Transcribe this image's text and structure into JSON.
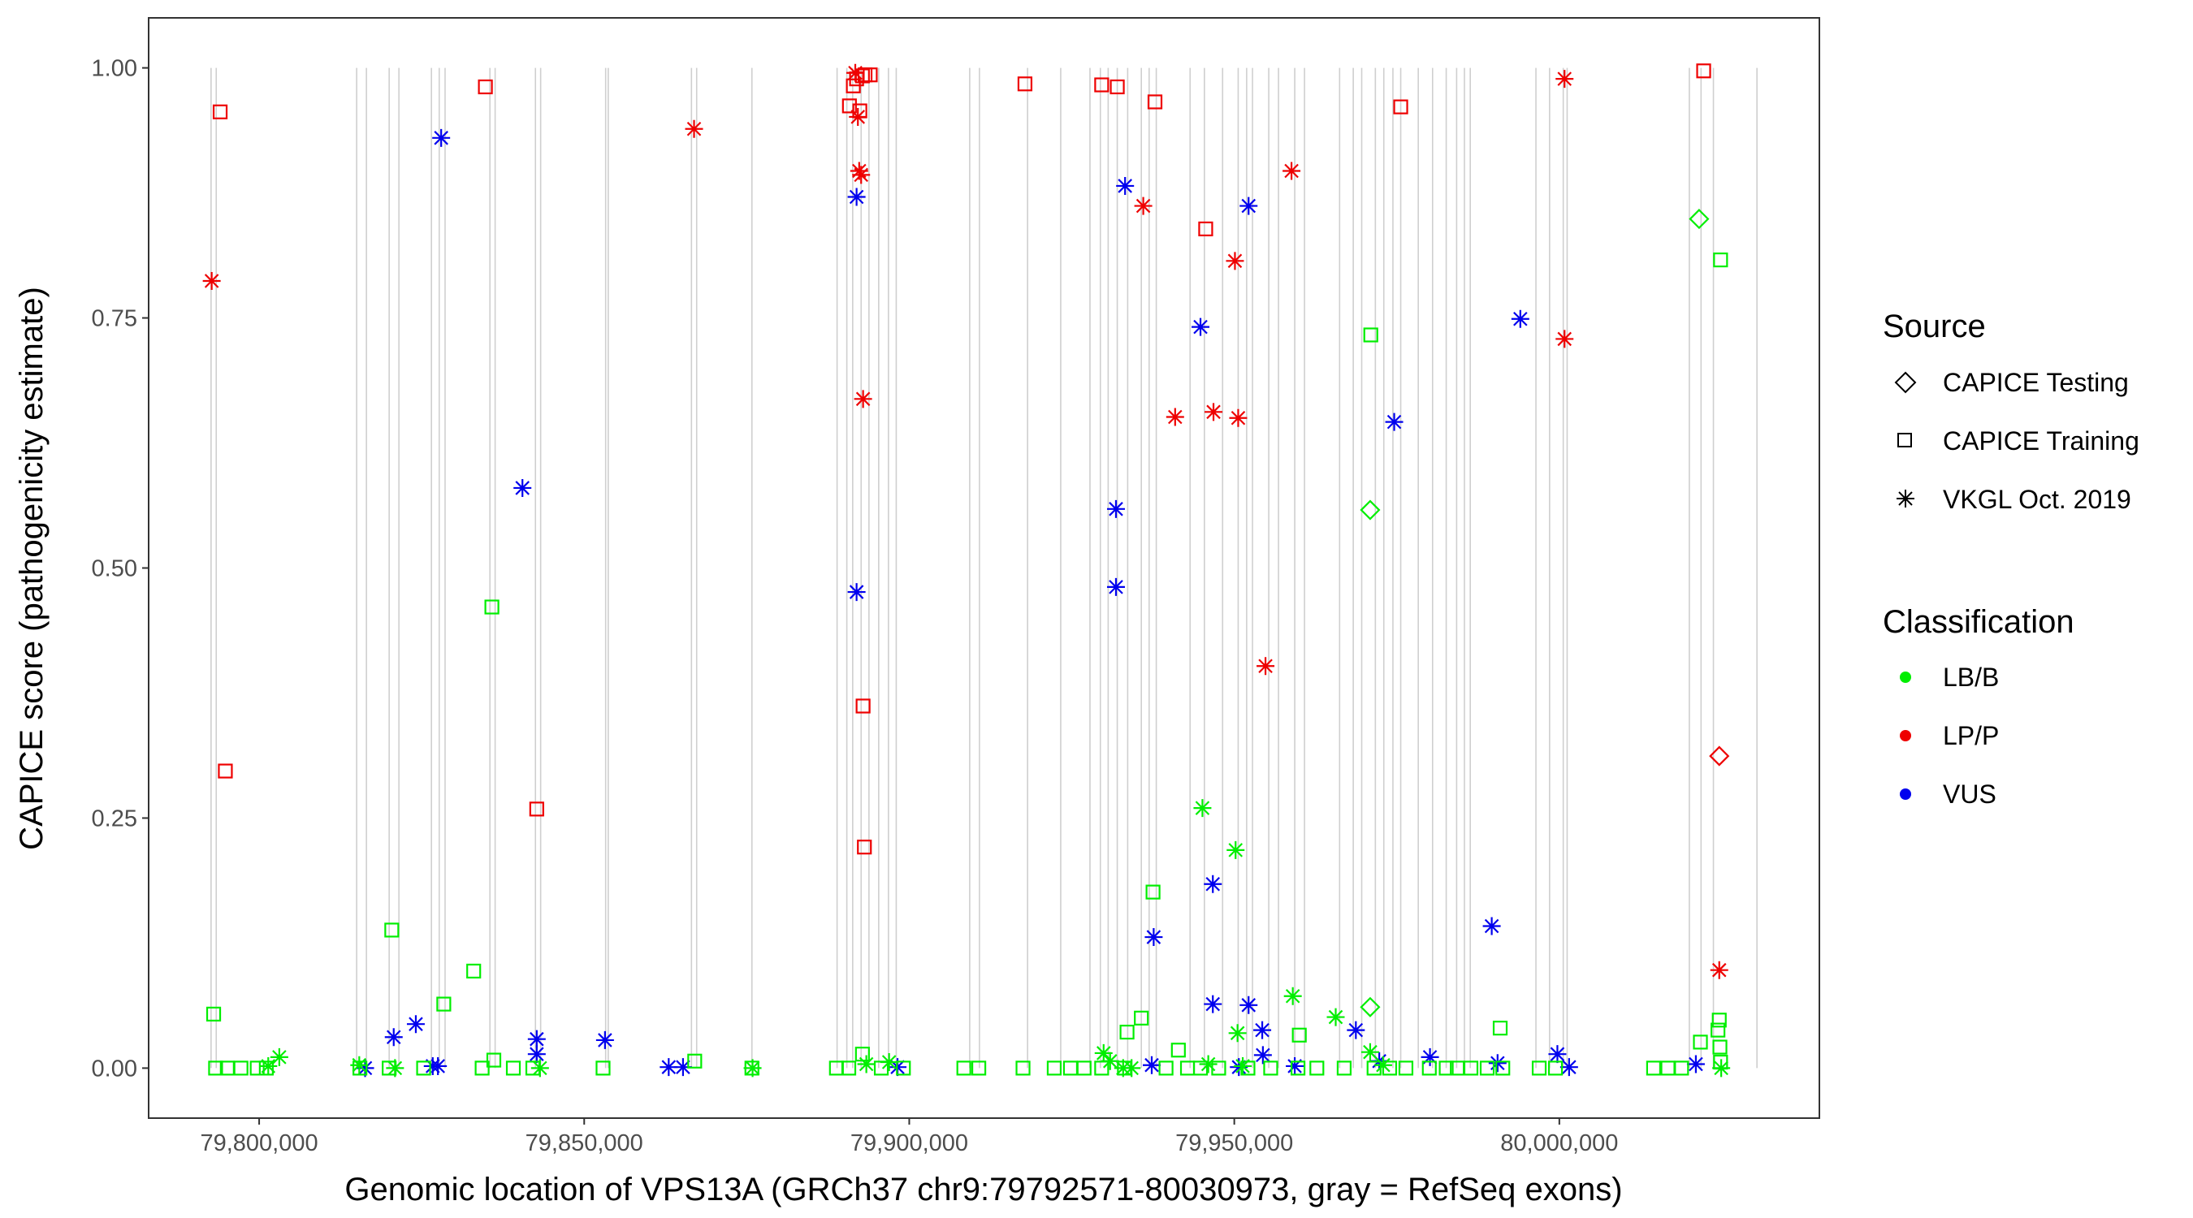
{
  "chart_data": {
    "type": "scatter",
    "xlabel": "Genomic location of VPS13A (GRCh37 chr9:79792571-80030973, gray = RefSeq exons)",
    "ylabel": "CAPICE score (pathogenicity estimate)",
    "xlim": [
      79783000,
      80040000
    ],
    "ylim": [
      -0.05,
      1.05
    ],
    "xticks": [
      79800000,
      79850000,
      79900000,
      79950000,
      80000000
    ],
    "xtick_labels": [
      "79,800,000",
      "79,850,000",
      "79,900,000",
      "79,950,000",
      "80,000,000"
    ],
    "yticks": [
      0,
      0.25,
      0.5,
      0.75,
      1.0
    ],
    "ytick_labels": [
      "0.00",
      "0.25",
      "0.50",
      "0.75",
      "1.00"
    ],
    "exon_positions": [
      79792600,
      79793400,
      79815000,
      79816500,
      79820000,
      79821500,
      79826500,
      79827700,
      79828600,
      79835500,
      79836300,
      79842500,
      79843300,
      79853300,
      79853700,
      79866500,
      79867300,
      79875800,
      79888900,
      79890400,
      79891300,
      79892600,
      79893800,
      79895300,
      79896800,
      79898000,
      79909300,
      79910800,
      79918200,
      79923300,
      79927800,
      79929400,
      79930600,
      79932000,
      79933600,
      79935700,
      79936900,
      79938000,
      79943200,
      79945400,
      79948200,
      79950600,
      79951900,
      79952800,
      79955300,
      79956800,
      79959300,
      79960800,
      79966200,
      79968300,
      79969600,
      79971700,
      79973000,
      79974400,
      79975600,
      79978300,
      79980500,
      79982600,
      79984200,
      79985400,
      79986300,
      79996400,
      79998500,
      80000600,
      80001200,
      80020000,
      80021800,
      80023700,
      80030400
    ],
    "legend": {
      "source_title": "Source",
      "source_entries": [
        {
          "label": "CAPICE Testing",
          "shape": "diamond"
        },
        {
          "label": "CAPICE Training",
          "shape": "square"
        },
        {
          "label": "VKGL Oct. 2019",
          "shape": "asterisk"
        }
      ],
      "class_title": "Classification",
      "class_entries": [
        {
          "label": "LB/B",
          "color": "#00ee00"
        },
        {
          "label": "LP/P",
          "color": "#ee0000"
        },
        {
          "label": "VUS",
          "color": "#0000ee"
        }
      ]
    },
    "series": [
      {
        "name": "CAPICE Training LP/P",
        "shape": "square",
        "class": "LP/P",
        "color": "#ee0000",
        "x": [
          79794000,
          79794800,
          79834800,
          79842700,
          79890800,
          79891400,
          79891900,
          79892400,
          79892800,
          79893200,
          79892900,
          79893100,
          79894000,
          79917800,
          79929600,
          79932000,
          79937800,
          79945600,
          79975600,
          80022200
        ],
        "y": [
          0.956,
          0.297,
          0.981,
          0.259,
          0.962,
          0.982,
          0.989,
          0.957,
          0.992,
          0.993,
          0.362,
          0.221,
          0.993,
          0.984,
          0.983,
          0.981,
          0.966,
          0.839,
          0.961,
          0.997
        ]
      },
      {
        "name": "VKGL LP/P",
        "shape": "asterisk",
        "class": "LP/P",
        "color": "#ee0000",
        "x": [
          79792700,
          79866900,
          79891700,
          79892100,
          79892300,
          79892600,
          79892900,
          79936000,
          79940900,
          79946800,
          79950100,
          79950600,
          79954800,
          79958800,
          80000800,
          80000800,
          80024600
        ],
        "y": [
          0.787,
          0.939,
          0.995,
          0.951,
          0.897,
          0.893,
          0.669,
          0.862,
          0.651,
          0.656,
          0.807,
          0.65,
          0.402,
          0.897,
          0.989,
          0.729,
          0.098
        ]
      },
      {
        "name": "CAPICE Testing LP/P",
        "shape": "diamond",
        "class": "LP/P",
        "color": "#ee0000",
        "x": [
          80024600
        ],
        "y": [
          0.312
        ]
      },
      {
        "name": "VKGL VUS",
        "shape": "asterisk",
        "class": "VUS",
        "color": "#0000ee",
        "x": [
          79828000,
          79840500,
          79891900,
          79891900,
          79931800,
          79931800,
          79933200,
          79944800,
          79952200,
          79937600,
          79946700,
          79946700,
          79952200,
          79954300,
          79968700,
          79974600,
          79989600,
          79994000,
          79816300,
          79820700,
          79824100,
          79826700,
          79827500,
          79842700,
          79842700,
          79853200,
          79863000,
          79865200,
          79898200,
          79937300,
          79950700,
          79954400,
          79959300,
          79972300,
          79980100,
          79990500,
          79999700,
          80001500,
          80021000
        ],
        "y": [
          0.93,
          0.58,
          0.871,
          0.476,
          0.559,
          0.481,
          0.882,
          0.741,
          0.862,
          0.131,
          0.184,
          0.064,
          0.063,
          0.038,
          0.038,
          0.646,
          0.142,
          0.749,
          0.0,
          0.031,
          0.044,
          0.002,
          0.002,
          0.029,
          0.014,
          0.028,
          0.001,
          0.001,
          0.001,
          0.003,
          0.001,
          0.013,
          0.002,
          0.007,
          0.011,
          0.005,
          0.014,
          0.001,
          0.004
        ]
      },
      {
        "name": "CAPICE Training LB/B",
        "shape": "square",
        "class": "LB/B",
        "color": "#00ee00",
        "x": [
          79793000,
          79820400,
          79828400,
          79833000,
          79835800,
          79935700,
          79937500,
          79971000,
          80024800,
          79793300,
          79795100,
          79797200,
          79799700,
          79801100,
          79815500,
          79820000,
          79825300,
          79834300,
          79836100,
          79839100,
          79842100,
          79852900,
          79867000,
          79875800,
          79888800,
          79890700,
          79892800,
          79895700,
          79899100,
          79908400,
          79910700,
          79917500,
          79922300,
          79924800,
          79926900,
          79929600,
          79933100,
          79939500,
          79942800,
          79944800,
          79947600,
          79952100,
          79955600,
          79959800,
          79962700,
          79966900,
          79971500,
          79973900,
          79976400,
          79980000,
          79982600,
          79984300,
          79986400,
          79988900,
          79991300,
          79996900,
          79999400,
          80014500,
          80016700,
          80018800,
          80021700,
          80024400,
          80024600,
          80024700,
          80024800,
          79933500,
          79941400,
          79960000,
          79990900
        ],
        "y": [
          0.054,
          0.138,
          0.064,
          0.097,
          0.461,
          0.05,
          0.176,
          0.733,
          0.808,
          0.0,
          0.0,
          0.0,
          0.0,
          0.0,
          0.0,
          0.0,
          0.0,
          0.0,
          0.008,
          0.0,
          0.0,
          0.0,
          0.007,
          0.0,
          0.0,
          0.0,
          0.014,
          0.0,
          0.0,
          0.0,
          0.0,
          0.0,
          0.0,
          0.0,
          0.0,
          0.0,
          0.0,
          0.0,
          0.0,
          0.0,
          0.0,
          0.0,
          0.0,
          0.0,
          0.0,
          0.0,
          0.0,
          0.0,
          0.0,
          0.0,
          0.0,
          0.0,
          0.0,
          0.0,
          0.0,
          0.0,
          0.0,
          0.0,
          0.0,
          0.0,
          0.026,
          0.038,
          0.048,
          0.021,
          0.006,
          0.036,
          0.018,
          0.033,
          0.04
        ]
      },
      {
        "name": "VKGL LB/B",
        "shape": "asterisk",
        "class": "LB/B",
        "color": "#00ee00",
        "x": [
          79945100,
          79950200,
          79959000,
          79950500,
          79803100,
          79801400,
          79815400,
          79820900,
          79843200,
          79875900,
          79893400,
          79896900,
          79929900,
          79930900,
          79932900,
          79934200,
          79946000,
          79951300,
          79965600,
          79970900,
          79972900,
          80024900
        ],
        "y": [
          0.26,
          0.218,
          0.072,
          0.035,
          0.011,
          0.002,
          0.003,
          0.0,
          0.0,
          0.0,
          0.004,
          0.006,
          0.015,
          0.007,
          0.0,
          0.0,
          0.004,
          0.002,
          0.051,
          0.016,
          0.003,
          0.0
        ]
      },
      {
        "name": "CAPICE Testing LB/B",
        "shape": "diamond",
        "class": "LB/B",
        "color": "#00ee00",
        "x": [
          80021500,
          79970900,
          79970900
        ],
        "y": [
          0.849,
          0.558,
          0.061
        ]
      }
    ]
  }
}
